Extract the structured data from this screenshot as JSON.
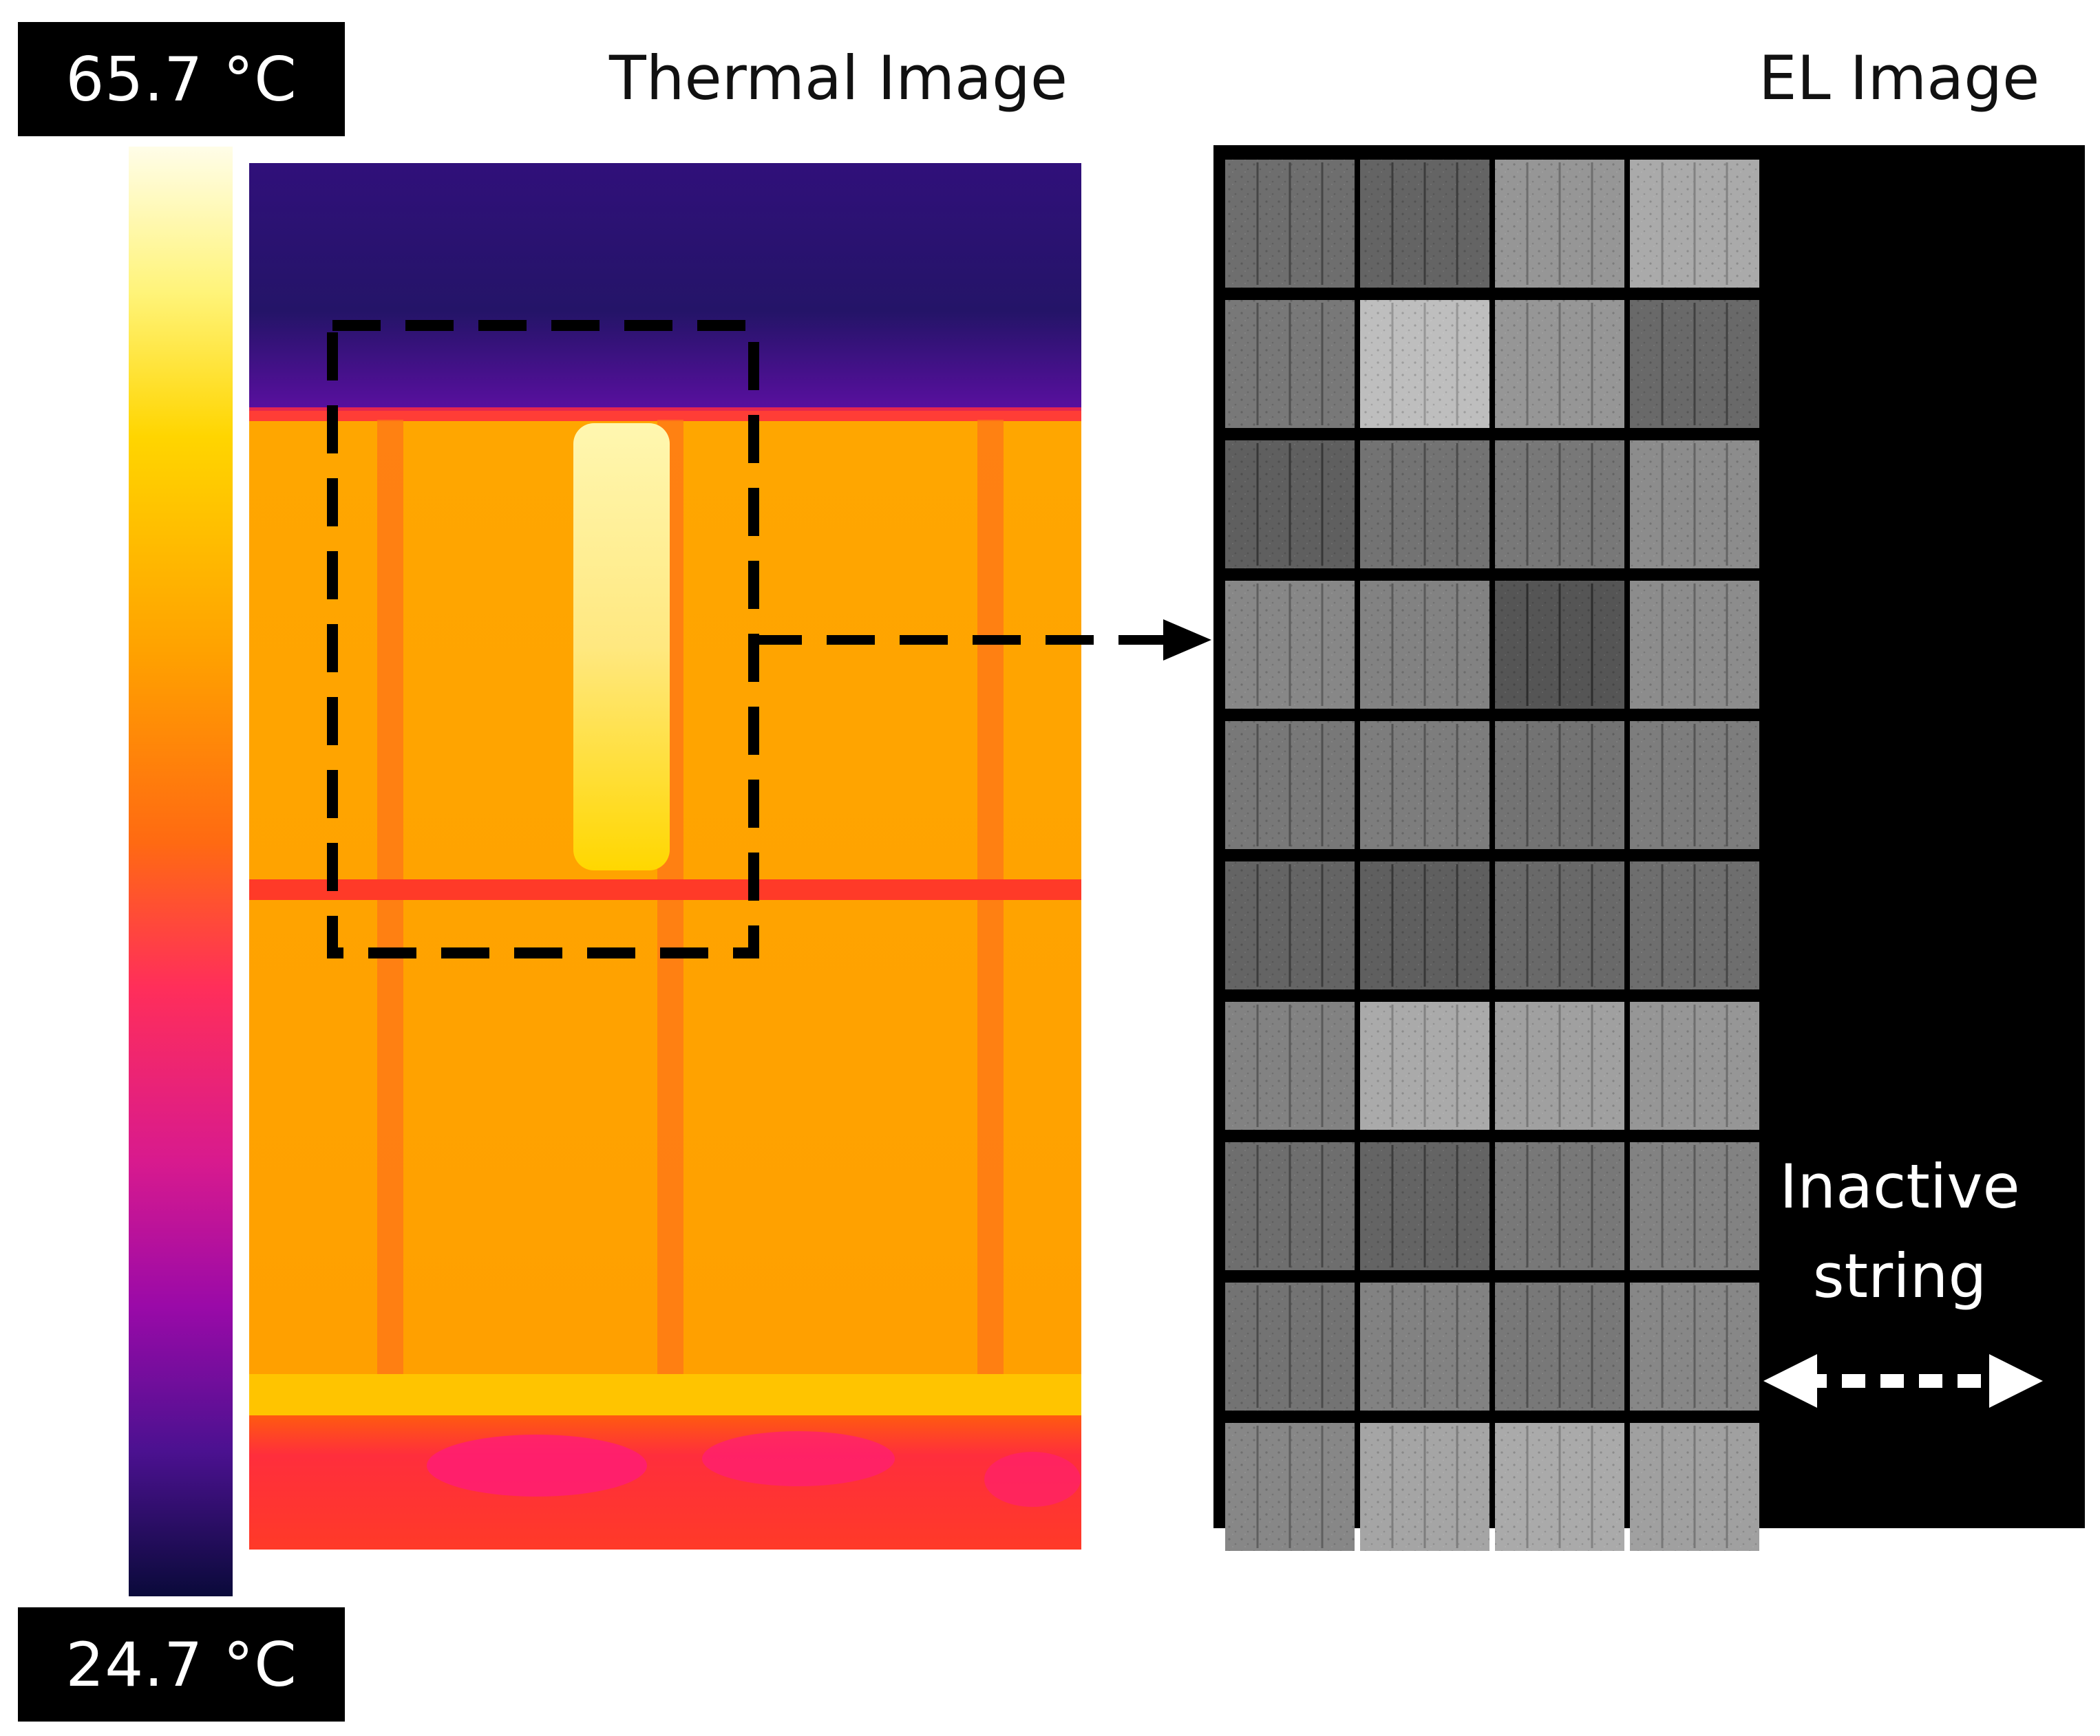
{
  "scale": {
    "max_label": "65.7 °C",
    "min_label": "24.7 °C",
    "gradient_colors": [
      "#fffde8",
      "#fff47a",
      "#ffd500",
      "#ffa100",
      "#ff6a12",
      "#ff2e5a",
      "#d81a8e",
      "#9a0aa8",
      "#4b1190",
      "#0a0a3a"
    ]
  },
  "thermal": {
    "title": "Thermal Image",
    "colors": {
      "sky": "#3a0c8c",
      "hot_panel": "#ffa000",
      "hotspot": "#fff5a0",
      "frame": "#ff3a28",
      "ground": "#ff2d5c"
    }
  },
  "el": {
    "title": "EL Image",
    "cell_grid": {
      "rows": 10,
      "active_columns": 4
    },
    "note_line1": "Inactive",
    "note_line2": "string"
  }
}
